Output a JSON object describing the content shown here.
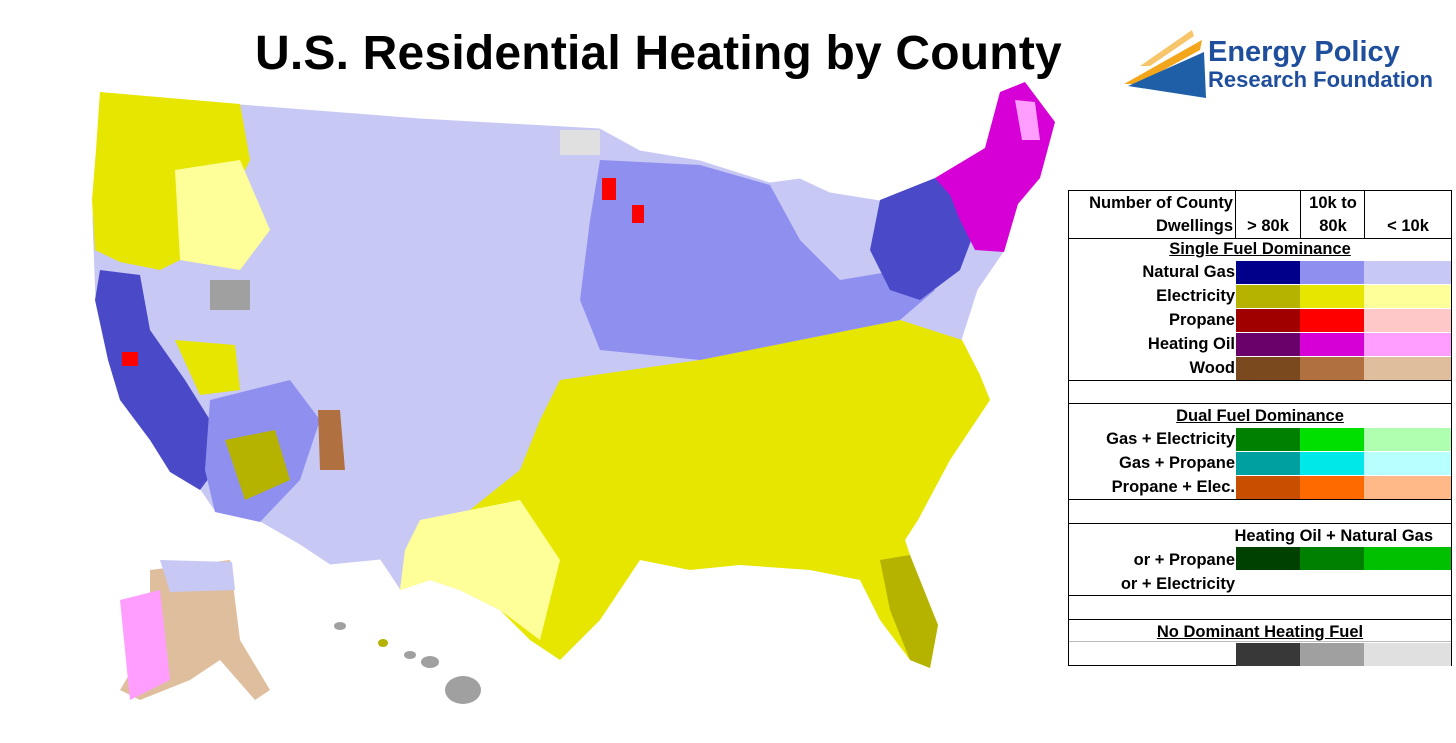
{
  "title": "U.S. Residential Heating by County",
  "logo": {
    "line1": "Energy Policy",
    "line2": "Research Foundation",
    "colors": {
      "text": "#1f4e9c",
      "accent1": "#f3a51c",
      "accent2": "#1f5fa8"
    }
  },
  "legend": {
    "header": {
      "label_line1": "Number of County",
      "label_line2": "Dwellings",
      "col1": "> 80k",
      "col2_line1": "10k to",
      "col2_line2": "80k",
      "col3": "< 10k"
    },
    "single_fuel": {
      "title": "Single Fuel Dominance",
      "rows": [
        {
          "label": "Natural Gas",
          "colors": [
            "#00008b",
            "#8f8ff0",
            "#c8c8f5"
          ]
        },
        {
          "label": "Electricity",
          "colors": [
            "#b5b200",
            "#e6e600",
            "#ffff99"
          ]
        },
        {
          "label": "Propane",
          "colors": [
            "#a00000",
            "#ff0000",
            "#ffc8c8"
          ]
        },
        {
          "label": "Heating Oil",
          "colors": [
            "#6a006a",
            "#d600d6",
            "#ff9eff"
          ]
        },
        {
          "label": "Wood",
          "colors": [
            "#7a4a1e",
            "#b07040",
            "#dfbe9e"
          ]
        }
      ]
    },
    "dual_fuel": {
      "title": "Dual Fuel Dominance",
      "rows": [
        {
          "label": "Gas + Electricity",
          "colors": [
            "#008000",
            "#00e000",
            "#b0ffb0"
          ]
        },
        {
          "label": "Gas + Propane",
          "colors": [
            "#00a0a0",
            "#00e8e8",
            "#b8ffff"
          ]
        },
        {
          "label": "Propane + Elec.",
          "colors": [
            "#c84e00",
            "#ff6a00",
            "#ffb888"
          ]
        }
      ]
    },
    "oil_combo": {
      "title": "Heating Oil + Natural Gas",
      "line2": "or + Propane",
      "line3": "or + Electricity",
      "colors": [
        "#004000",
        "#008000",
        "#00c000"
      ]
    },
    "none": {
      "title": "No Dominant Heating Fuel",
      "colors": [
        "#383838",
        "#a0a0a0",
        "#e0e0e0"
      ]
    }
  }
}
